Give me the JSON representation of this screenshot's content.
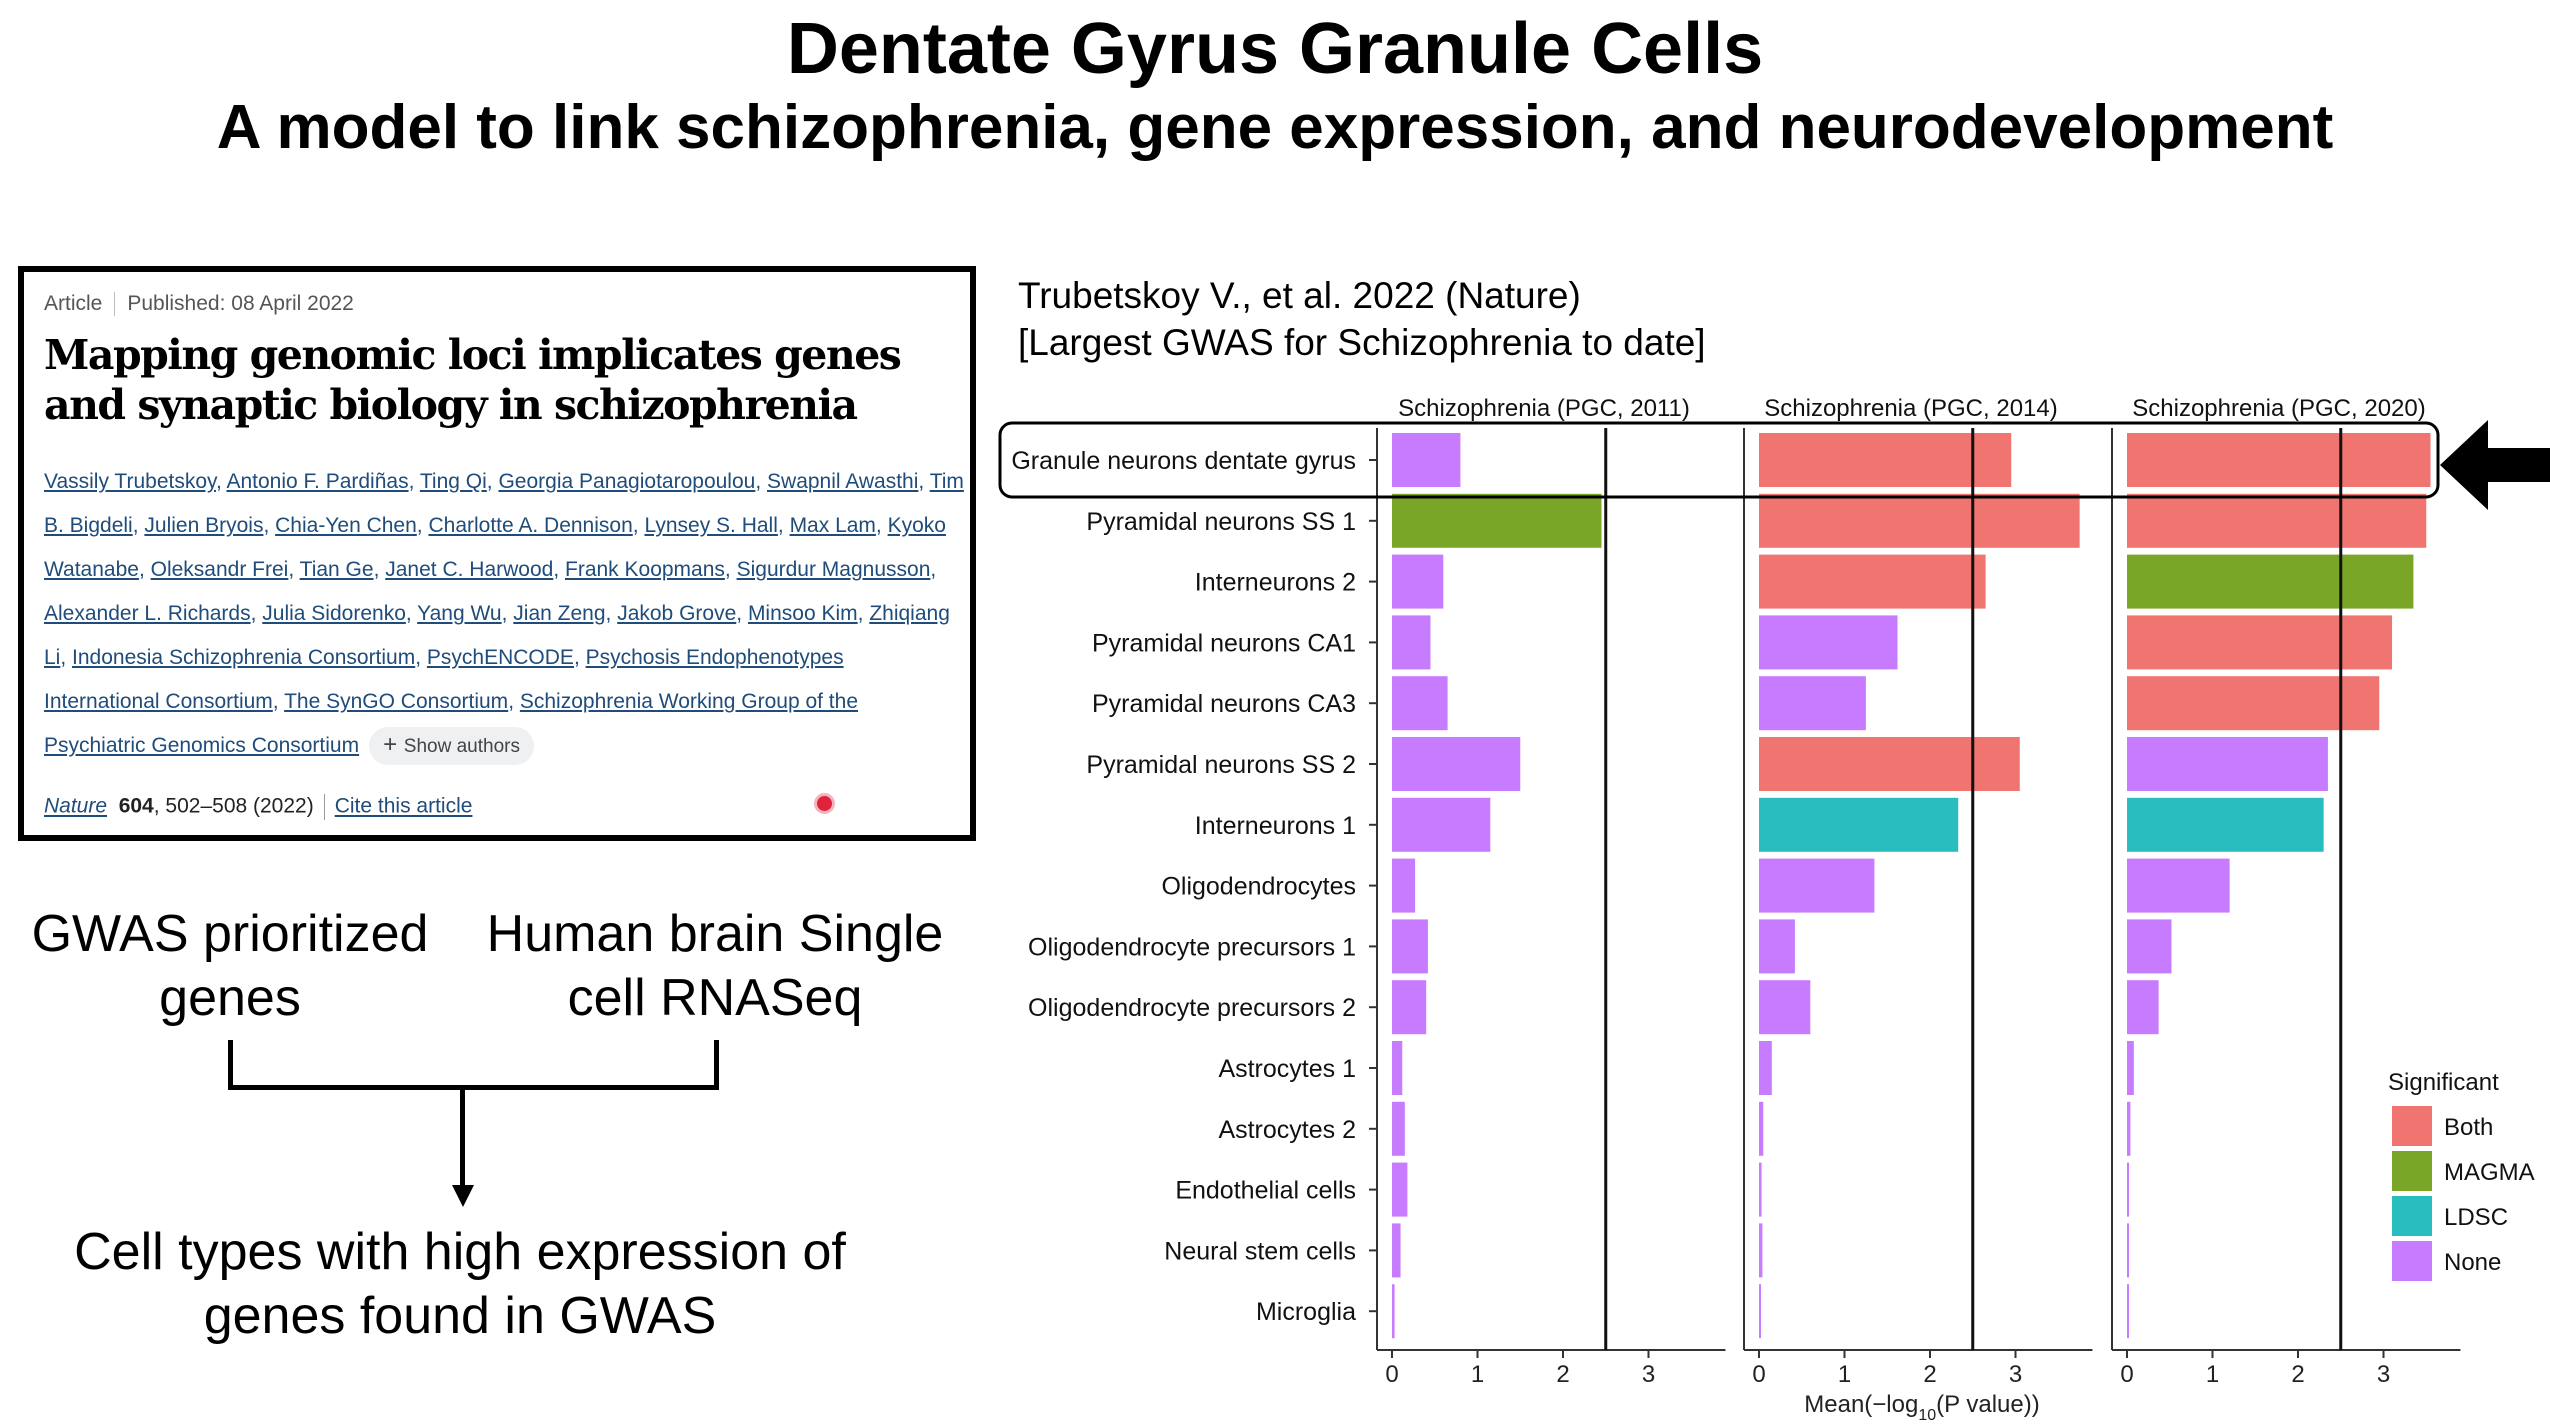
{
  "slide": {
    "title": "Dentate Gyrus Granule Cells",
    "subtitle": "A model to link schizophrenia, gene expression, and neurodevelopment"
  },
  "article": {
    "type": "Article",
    "published": "Published: 08 April 2022",
    "title": "Mapping genomic loci implicates genes and synaptic biology in schizophrenia",
    "authors": [
      "Vassily Trubetskoy",
      "Antonio F. Pardiñas",
      "Ting Qi",
      "Georgia Panagiotaropoulou",
      "Swapnil Awasthi",
      "Tim B. Bigdeli",
      "Julien Bryois",
      "Chia-Yen Chen",
      "Charlotte A. Dennison",
      "Lynsey S. Hall",
      "Max Lam",
      "Kyoko Watanabe",
      "Oleksandr Frei",
      "Tian Ge",
      "Janet C. Harwood",
      "Frank Koopmans",
      "Sigurdur Magnusson",
      "Alexander L. Richards",
      "Julia Sidorenko",
      "Yang Wu",
      "Jian Zeng",
      "Jakob Grove",
      "Minsoo Kim",
      "Zhiqiang Li",
      "Indonesia Schizophrenia Consortium",
      "PsychENCODE",
      "Psychosis Endophenotypes International Consortium",
      "The SynGO Consortium",
      "Schizophrenia Working Group of the Psychiatric Genomics Consortium"
    ],
    "show_authors": "Show authors",
    "journal": "Nature",
    "volume": "604",
    "pages": ", 502–508 (2022)",
    "cite": "Cite this article"
  },
  "flow": {
    "gwas": "GWAS prioritized genes",
    "brain": "Human brain Single cell RNASeq",
    "result": "Cell types with high expression of genes found in GWAS"
  },
  "citation_note": {
    "line1": "Trubetskoy V., et al. 2022 (Nature)",
    "line2": "[Largest GWAS for Schizophrenia to date]"
  },
  "chart_data": {
    "type": "bar",
    "orientation": "horizontal",
    "categories": [
      "Granule neurons dentate gyrus",
      "Pyramidal neurons SS 1",
      "Interneurons 2",
      "Pyramidal neurons CA1",
      "Pyramidal neurons CA3",
      "Pyramidal neurons SS 2",
      "Interneurons 1",
      "Oligodendrocytes",
      "Oligodendrocyte precursors 1",
      "Oligodendrocyte precursors 2",
      "Astrocytes 1",
      "Astrocytes 2",
      "Endothelial cells",
      "Neural stem cells",
      "Microglia"
    ],
    "highlighted_category": "Granule neurons dentate gyrus",
    "xlabel_pre": "Mean(−log",
    "xlabel_sub": "10",
    "xlabel_post": "(P value))",
    "xlim": [
      0,
      3.9
    ],
    "xticks": [
      0,
      1,
      2,
      3
    ],
    "threshold_line": 2.5,
    "panels": [
      {
        "name": "Schizophrenia (PGC, 2011)",
        "values": [
          0.8,
          2.45,
          0.6,
          0.45,
          0.65,
          1.5,
          1.15,
          0.27,
          0.42,
          0.4,
          0.12,
          0.15,
          0.18,
          0.1,
          0.03
        ],
        "significant": [
          "None",
          "MAGMA",
          "None",
          "None",
          "None",
          "None",
          "None",
          "None",
          "None",
          "None",
          "None",
          "None",
          "None",
          "None",
          "None"
        ]
      },
      {
        "name": "Schizophrenia (PGC, 2014)",
        "values": [
          2.95,
          3.75,
          2.65,
          1.62,
          1.25,
          3.05,
          2.33,
          1.35,
          0.42,
          0.6,
          0.15,
          0.05,
          0.03,
          0.04,
          0.0
        ],
        "significant": [
          "Both",
          "Both",
          "Both",
          "None",
          "None",
          "Both",
          "LDSC",
          "None",
          "None",
          "None",
          "None",
          "None",
          "None",
          "None",
          "None"
        ]
      },
      {
        "name": "Schizophrenia (PGC, 2020)",
        "values": [
          3.55,
          3.5,
          3.35,
          3.1,
          2.95,
          2.35,
          2.3,
          1.2,
          0.52,
          0.37,
          0.08,
          0.04,
          0.02,
          0.01,
          0.0
        ],
        "significant": [
          "Both",
          "Both",
          "MAGMA",
          "Both",
          "Both",
          "None",
          "LDSC",
          "None",
          "None",
          "None",
          "None",
          "None",
          "None",
          "None",
          "None"
        ]
      }
    ],
    "legend": {
      "title": "Significant",
      "placement": "bottom-right",
      "items": [
        {
          "name": "Both",
          "color": "#f07470"
        },
        {
          "name": "MAGMA",
          "color": "#7aa628"
        },
        {
          "name": "LDSC",
          "color": "#2abdbf"
        },
        {
          "name": "None",
          "color": "#c77cff"
        }
      ]
    }
  }
}
